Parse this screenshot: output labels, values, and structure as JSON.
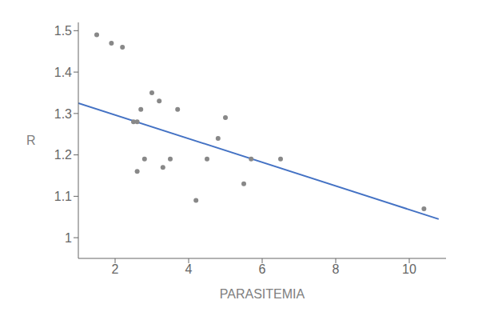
{
  "chart_data": {
    "type": "scatter",
    "xlabel": "PARASITEMIA",
    "ylabel": "R",
    "xlim": [
      1.0,
      11.0
    ],
    "ylim": [
      0.95,
      1.52
    ],
    "xticks": [
      2,
      4,
      6,
      8,
      10
    ],
    "yticks": [
      1.0,
      1.1,
      1.2,
      1.3,
      1.4,
      1.5
    ],
    "grid": false,
    "series": [
      {
        "type": "scatter",
        "marker": "point",
        "color": "#888888",
        "x": [
          1.5,
          1.9,
          2.2,
          2.5,
          2.6,
          2.6,
          2.7,
          2.8,
          3.0,
          3.2,
          3.3,
          3.5,
          3.7,
          4.2,
          4.5,
          4.8,
          5.0,
          5.5,
          5.7,
          6.5,
          10.4
        ],
        "values": [
          1.49,
          1.47,
          1.46,
          1.28,
          1.28,
          1.16,
          1.31,
          1.19,
          1.35,
          1.33,
          1.17,
          1.19,
          1.31,
          1.09,
          1.19,
          1.24,
          1.29,
          1.13,
          1.19,
          1.19,
          1.07
        ]
      },
      {
        "type": "line",
        "line_style": "solid",
        "color": "#4472c4",
        "x": [
          1.0,
          10.8
        ],
        "values": [
          1.325,
          1.045
        ]
      }
    ]
  }
}
